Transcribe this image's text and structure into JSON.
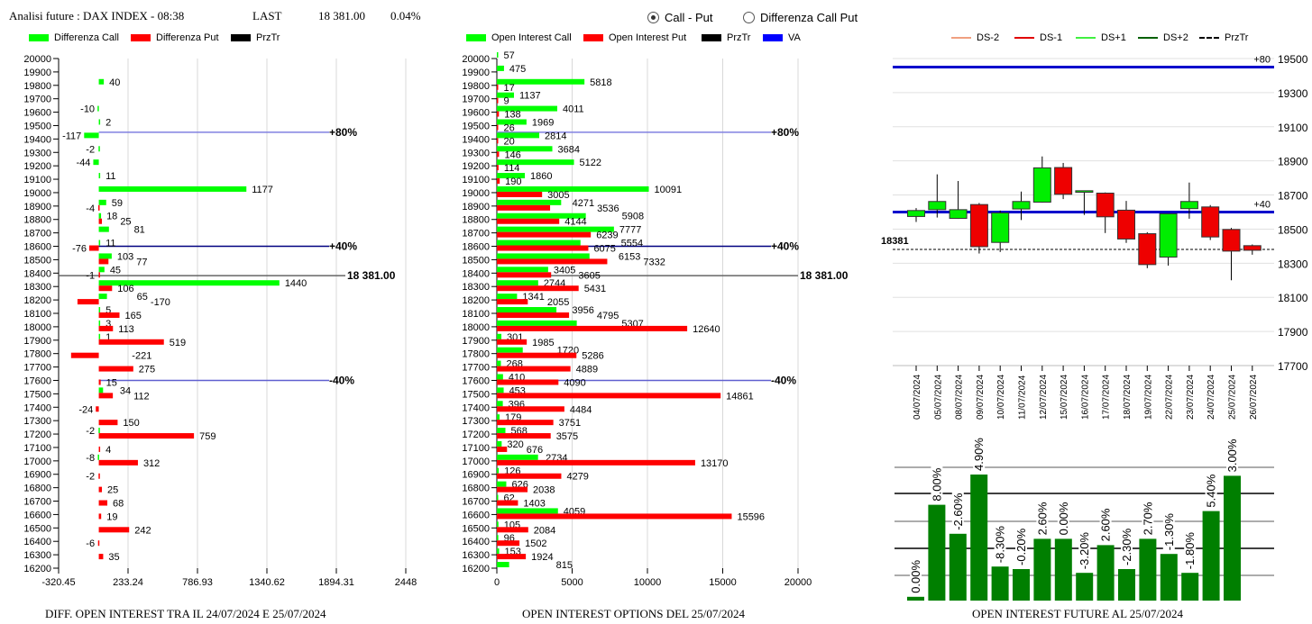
{
  "header": {
    "title": "Analisi future : DAX INDEX - 08:38",
    "last_label": "LAST",
    "last_value": "18 381.00",
    "change": "0.04%"
  },
  "mode_selector": {
    "options": [
      "Call - Put",
      "Differenza Call Put"
    ],
    "selected": "Call - Put"
  },
  "colors": {
    "call": "#00ff00",
    "put": "#ff0000",
    "przTr": "#000000",
    "va": "#0000ff",
    "future_bar": "#007f00"
  },
  "legends": {
    "left": [
      "Differenza Call",
      "Differenza Put",
      "PrzTr"
    ],
    "middle": [
      "Open Interest Call",
      "Open Interest Put",
      "PrzTr",
      "VA"
    ],
    "right": [
      "DS-2",
      "DS-1",
      "DS+1",
      "DS+2",
      "PrzTr"
    ]
  },
  "chart_data": [
    {
      "id": "diff",
      "type": "bar",
      "orientation": "horizontal",
      "title": "DIFF. OPEN INTEREST TRA IL 24/07/2024 E 25/07/2024",
      "ylim": [
        16200,
        20000
      ],
      "xlim": [
        -320.45,
        2448
      ],
      "x_ticks": [
        "-320.45",
        "233.24",
        "786.93",
        "1340.62",
        "1894.31",
        "2448"
      ],
      "grid": "vertical",
      "levels": [
        {
          "label": "+80%",
          "value": 19450
        },
        {
          "label": "+40%",
          "value": 18600
        },
        {
          "label": "-40%",
          "value": 17600
        }
      ],
      "price_line": {
        "label": "18 381.00",
        "value": 18381
      },
      "rows": [
        {
          "strike": 20000,
          "call": null,
          "put": null
        },
        {
          "strike": 19900,
          "call": null,
          "put": null
        },
        {
          "strike": 19800,
          "call": 40,
          "put": null
        },
        {
          "strike": 19700,
          "call": null,
          "put": null
        },
        {
          "strike": 19600,
          "call": -10,
          "put": null
        },
        {
          "strike": 19500,
          "call": 2,
          "put": null
        },
        {
          "strike": 19400,
          "call": -117,
          "put": null
        },
        {
          "strike": 19300,
          "call": -2,
          "put": null
        },
        {
          "strike": 19200,
          "call": -44,
          "put": null
        },
        {
          "strike": 19100,
          "call": 11,
          "put": null
        },
        {
          "strike": 19000,
          "call": 1177,
          "put": null
        },
        {
          "strike": 18900,
          "call": 59,
          "put": -4
        },
        {
          "strike": 18800,
          "call": 18,
          "put": 25
        },
        {
          "strike": 18700,
          "call": 81,
          "put": null
        },
        {
          "strike": 18600,
          "call": 11,
          "put": -76
        },
        {
          "strike": 18500,
          "call": 103,
          "put": 77
        },
        {
          "strike": 18400,
          "call": 45,
          "put": -1
        },
        {
          "strike": 18300,
          "call": 1440,
          "put": 106
        },
        {
          "strike": 18200,
          "call": 65,
          "put": -170
        },
        {
          "strike": 18100,
          "call": 5,
          "put": 165
        },
        {
          "strike": 18000,
          "call": 3,
          "put": 113
        },
        {
          "strike": 17900,
          "call": 1,
          "put": 519
        },
        {
          "strike": 17800,
          "call": null,
          "put": -221
        },
        {
          "strike": 17700,
          "call": null,
          "put": 275
        },
        {
          "strike": 17600,
          "call": null,
          "put": 15
        },
        {
          "strike": 17500,
          "call": 34,
          "put": 112
        },
        {
          "strike": 17400,
          "call": null,
          "put": -24
        },
        {
          "strike": 17300,
          "call": null,
          "put": 150
        },
        {
          "strike": 17200,
          "call": -2,
          "put": 759
        },
        {
          "strike": 17100,
          "call": null,
          "put": 4
        },
        {
          "strike": 17000,
          "call": -8,
          "put": 312
        },
        {
          "strike": 16900,
          "call": null,
          "put": -2
        },
        {
          "strike": 16800,
          "call": null,
          "put": 25
        },
        {
          "strike": 16700,
          "call": null,
          "put": 68
        },
        {
          "strike": 16600,
          "call": null,
          "put": 19
        },
        {
          "strike": 16500,
          "call": null,
          "put": 242
        },
        {
          "strike": 16400,
          "call": null,
          "put": -6
        },
        {
          "strike": 16300,
          "call": null,
          "put": 35
        },
        {
          "strike": 16200,
          "call": null,
          "put": null
        }
      ]
    },
    {
      "id": "oi",
      "type": "bar",
      "orientation": "horizontal",
      "title": "OPEN INTEREST OPTIONS DEL 25/07/2024",
      "ylim": [
        16200,
        20000
      ],
      "xlim": [
        0,
        20000
      ],
      "x_ticks": [
        "0",
        "5000",
        "10000",
        "15000",
        "20000"
      ],
      "grid": "vertical",
      "levels": [
        {
          "label": "+80%",
          "value": 19450
        },
        {
          "label": "+40%",
          "value": 18600
        },
        {
          "label": "-40%",
          "value": 17600
        }
      ],
      "price_line": {
        "label": "18 381.00",
        "value": 18381
      },
      "rows": [
        {
          "strike": 20000,
          "call": 57,
          "put": null
        },
        {
          "strike": 19900,
          "call": 475,
          "put": null
        },
        {
          "strike": 19800,
          "call": 5818,
          "put": 17
        },
        {
          "strike": 19700,
          "call": 1137,
          "put": 9
        },
        {
          "strike": 19600,
          "call": 4011,
          "put": 138
        },
        {
          "strike": 19500,
          "call": 1969,
          "put": 26
        },
        {
          "strike": 19400,
          "call": 2814,
          "put": 20
        },
        {
          "strike": 19300,
          "call": 3684,
          "put": 146
        },
        {
          "strike": 19200,
          "call": 5122,
          "put": 114
        },
        {
          "strike": 19100,
          "call": 1860,
          "put": 190
        },
        {
          "strike": 19000,
          "call": 10091,
          "put": 3005
        },
        {
          "strike": 18900,
          "call": 4271,
          "put": 3536
        },
        {
          "strike": 18800,
          "call": 5908,
          "put": 4144
        },
        {
          "strike": 18700,
          "call": 7777,
          "put": 6239
        },
        {
          "strike": 18600,
          "call": 5554,
          "put": 6075
        },
        {
          "strike": 18500,
          "call": 6153,
          "put": 7332
        },
        {
          "strike": 18400,
          "call": 3405,
          "put": 3605
        },
        {
          "strike": 18300,
          "call": 2744,
          "put": 5431
        },
        {
          "strike": 18200,
          "call": 1341,
          "put": 2055
        },
        {
          "strike": 18100,
          "call": 3956,
          "put": 4795
        },
        {
          "strike": 18000,
          "call": 5307,
          "put": 12640
        },
        {
          "strike": 17900,
          "call": 301,
          "put": 1985
        },
        {
          "strike": 17800,
          "call": 1720,
          "put": 5286
        },
        {
          "strike": 17700,
          "call": 268,
          "put": 4889
        },
        {
          "strike": 17600,
          "call": 410,
          "put": 4090
        },
        {
          "strike": 17500,
          "call": 453,
          "put": 14861
        },
        {
          "strike": 17400,
          "call": 396,
          "put": 4484
        },
        {
          "strike": 17300,
          "call": 179,
          "put": 3751
        },
        {
          "strike": 17200,
          "call": 568,
          "put": 3575
        },
        {
          "strike": 17100,
          "call": 320,
          "put": 676
        },
        {
          "strike": 17000,
          "call": 2734,
          "put": 13170
        },
        {
          "strike": 16900,
          "call": 126,
          "put": 4279
        },
        {
          "strike": 16800,
          "call": 626,
          "put": 2038
        },
        {
          "strike": 16700,
          "call": 62,
          "put": 1403
        },
        {
          "strike": 16600,
          "call": 4059,
          "put": 15596
        },
        {
          "strike": 16500,
          "call": 105,
          "put": 2084
        },
        {
          "strike": 16400,
          "call": 96,
          "put": 1502
        },
        {
          "strike": 16300,
          "call": 153,
          "put": 1924
        },
        {
          "strike": 16200,
          "call": 815,
          "put": null
        }
      ]
    },
    {
      "id": "candles",
      "type": "candlestick",
      "ylim": [
        17700,
        19500
      ],
      "y_ticks": [
        19500,
        19300,
        19100,
        18900,
        18700,
        18500,
        18300,
        18100,
        17900,
        17700
      ],
      "levels": [
        {
          "label": "+80",
          "value": 19450
        },
        {
          "label": "+40",
          "value": 18600
        }
      ],
      "price_line": {
        "label": "18381",
        "value": 18381
      },
      "candles": [
        {
          "date": "04/07/2024",
          "open": 18574,
          "high": 18623,
          "low": 18542,
          "close": 18609
        },
        {
          "date": "05/07/2024",
          "open": 18614,
          "high": 18821,
          "low": 18568,
          "close": 18662
        },
        {
          "date": "08/07/2024",
          "open": 18563,
          "high": 18782,
          "low": 18560,
          "close": 18614
        },
        {
          "date": "09/07/2024",
          "open": 18644,
          "high": 18653,
          "low": 18357,
          "close": 18397
        },
        {
          "date": "10/07/2024",
          "open": 18422,
          "high": 18609,
          "low": 18366,
          "close": 18595
        },
        {
          "date": "11/07/2024",
          "open": 18618,
          "high": 18720,
          "low": 18553,
          "close": 18662
        },
        {
          "date": "12/07/2024",
          "open": 18658,
          "high": 18926,
          "low": 18655,
          "close": 18859
        },
        {
          "date": "15/07/2024",
          "open": 18861,
          "high": 18888,
          "low": 18676,
          "close": 18704
        },
        {
          "date": "16/07/2024",
          "open": 18716,
          "high": 18725,
          "low": 18583,
          "close": 18725
        },
        {
          "date": "17/07/2024",
          "open": 18711,
          "high": 18715,
          "low": 18477,
          "close": 18572
        },
        {
          "date": "18/07/2024",
          "open": 18611,
          "high": 18665,
          "low": 18419,
          "close": 18442
        },
        {
          "date": "19/07/2024",
          "open": 18473,
          "high": 18482,
          "low": 18271,
          "close": 18292
        },
        {
          "date": "22/07/2024",
          "open": 18336,
          "high": 18590,
          "low": 18286,
          "close": 18590
        },
        {
          "date": "23/07/2024",
          "open": 18620,
          "high": 18773,
          "low": 18561,
          "close": 18662
        },
        {
          "date": "24/07/2024",
          "open": 18630,
          "high": 18641,
          "low": 18436,
          "close": 18454
        },
        {
          "date": "25/07/2024",
          "open": 18498,
          "high": 18507,
          "low": 18200,
          "close": 18371
        },
        {
          "date": "26/07/2024",
          "open": 18403,
          "high": 18410,
          "low": 18350,
          "close": 18376
        }
      ]
    },
    {
      "id": "future_oi",
      "type": "bar",
      "title": "OPEN INTEREST FUTURE AL 25/07/2024",
      "labels": [
        "0.00%",
        "8.00%",
        "-2.60%",
        "4.90%",
        "-8.30%",
        "-0.20%",
        "2.60%",
        "0.00%",
        "-3.20%",
        "2.60%",
        "-2.30%",
        "2.70%",
        "-1.30%",
        "-1.80%",
        "5.40%",
        "3.00%"
      ],
      "relative_height": [
        0.03,
        0.76,
        0.53,
        1.0,
        0.27,
        0.25,
        0.49,
        0.49,
        0.22,
        0.44,
        0.25,
        0.49,
        0.37,
        0.22,
        0.71,
        0.99
      ],
      "grid": "horizontal"
    }
  ]
}
